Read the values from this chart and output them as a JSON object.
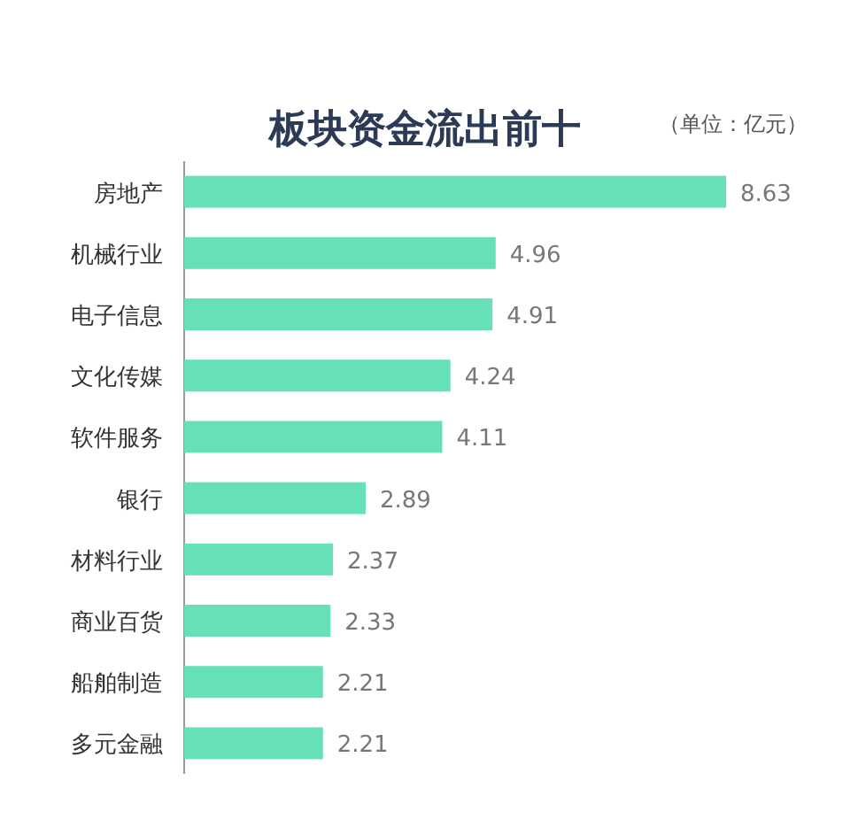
{
  "chart_data": {
    "type": "bar",
    "orientation": "horizontal",
    "title": "板块资金流出前十",
    "annotations": [
      "（单位：亿元）"
    ],
    "categories": [
      "房地产",
      "机械行业",
      "电子信息",
      "文化传媒",
      "软件服务",
      "银行",
      "材料行业",
      "商业百货",
      "船舶制造",
      "多元金融"
    ],
    "values": [
      8.63,
      4.96,
      4.91,
      4.24,
      4.11,
      2.89,
      2.37,
      2.33,
      2.21,
      2.21
    ],
    "color": "#66e0b6",
    "data_labels": true
  }
}
